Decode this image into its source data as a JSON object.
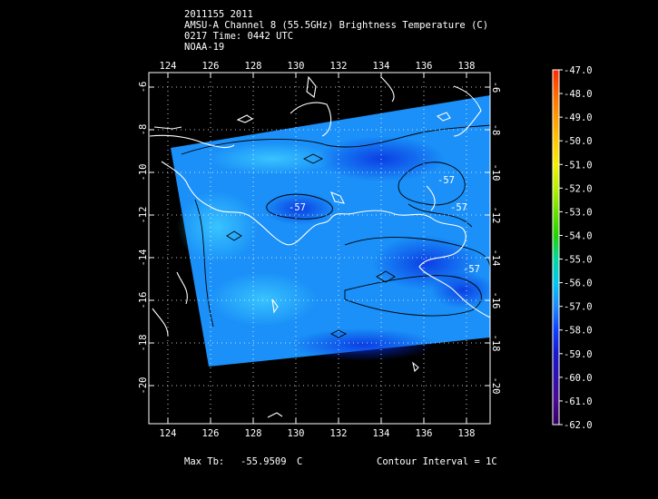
{
  "header": {
    "line1": "2011155 2011",
    "line2": "AMSU-A Channel 8 (55.5GHz) Brightness Temperature (C)",
    "line3": "0217 Time: 0442 UTC",
    "line4": "NOAA-19"
  },
  "map": {
    "lon_labels": [
      "124",
      "126",
      "128",
      "130",
      "132",
      "134",
      "136",
      "138"
    ],
    "lat_labels": [
      "-6",
      "-8",
      "-10",
      "-12",
      "-14",
      "-16",
      "-18",
      "-20"
    ],
    "lon_range": [
      123.0,
      139.2
    ],
    "lat_range": [
      -5.3,
      -21.6
    ],
    "contour_labels": [
      "-57",
      "-57",
      "-57",
      "-57"
    ]
  },
  "colorbar": {
    "labels": [
      "-47.0",
      "-48.0",
      "-49.0",
      "-50.0",
      "-51.0",
      "-52.0",
      "-53.0",
      "-54.0",
      "-55.0",
      "-56.0",
      "-57.0",
      "-58.0",
      "-59.0",
      "-60.0",
      "-61.0",
      "-62.0"
    ],
    "colors": [
      "#ff2a00",
      "#ff6a00",
      "#ff9a00",
      "#ffc800",
      "#f4f000",
      "#b8f000",
      "#6ce000",
      "#22d400",
      "#00d8a0",
      "#00c8f0",
      "#1c8cff",
      "#1040ff",
      "#1818d0",
      "#3010b0",
      "#4a0a90",
      "#300060"
    ]
  },
  "footer": {
    "max_label": "Max Tb:",
    "max_value": "-55.9509",
    "max_unit": "C",
    "contour_interval": "Contour Interval = 1C"
  }
}
